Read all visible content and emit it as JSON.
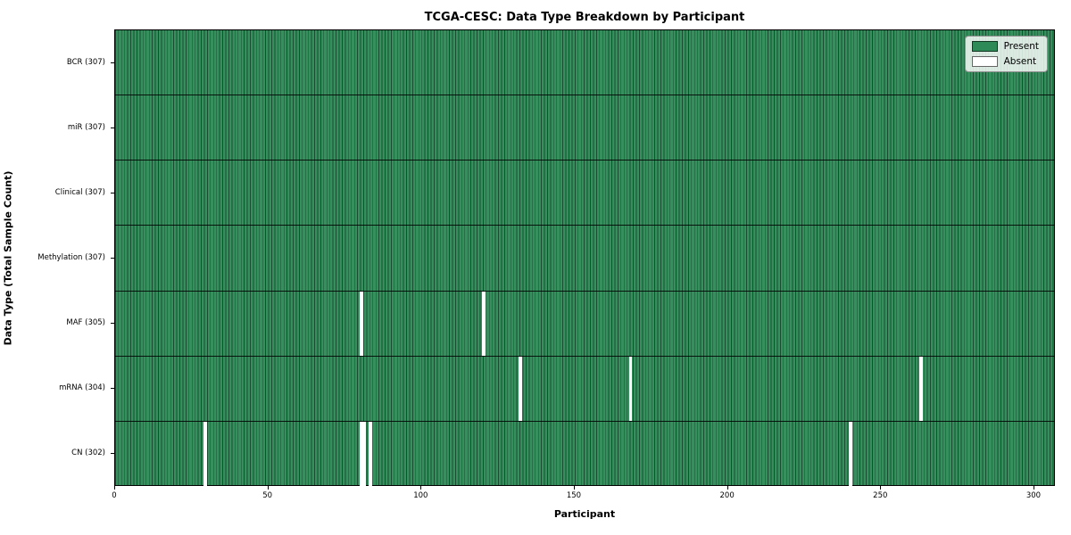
{
  "chart_data": {
    "type": "heatmap",
    "title": "TCGA-CESC: Data Type Breakdown by Participant",
    "xlabel": "Participant",
    "ylabel": "Data Type (Total Sample Count)",
    "xlim": [
      0,
      307
    ],
    "x_ticks": [
      0,
      50,
      100,
      150,
      200,
      250,
      300
    ],
    "n_participants": 307,
    "grid": false,
    "legend_position": "upper right",
    "rows": [
      {
        "label": "BCR (307)",
        "total": 307,
        "absent": []
      },
      {
        "label": "miR (307)",
        "total": 307,
        "absent": []
      },
      {
        "label": "Clinical (307)",
        "total": 307,
        "absent": []
      },
      {
        "label": "Methylation (307)",
        "total": 307,
        "absent": []
      },
      {
        "label": "MAF (305)",
        "total": 305,
        "absent": [
          80,
          120
        ]
      },
      {
        "label": "mRNA (304)",
        "total": 304,
        "absent": [
          132,
          168,
          263
        ]
      },
      {
        "label": "CN (302)",
        "total": 302,
        "absent": [
          29,
          80,
          81,
          83,
          240
        ]
      }
    ],
    "legend": [
      {
        "label": "Present",
        "color": "#2e8b57"
      },
      {
        "label": "Absent",
        "color": "#ffffff"
      }
    ],
    "colors": {
      "present": "#2e8b57",
      "absent": "#ffffff",
      "bar_edge": "#1c4f33",
      "row_separator": "#000000",
      "plot_border": "#000000"
    }
  }
}
